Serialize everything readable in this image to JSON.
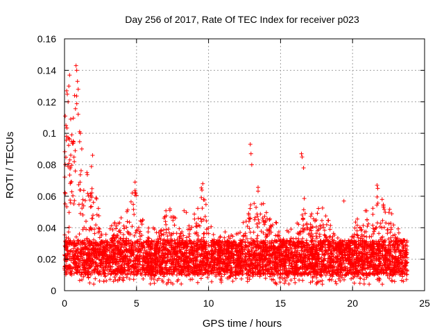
{
  "chart_data": {
    "type": "scatter",
    "title": "Day 256 of 2017, Rate Of TEC Index for receiver p023",
    "xlabel": "GPS time / hours",
    "ylabel": "ROTI / TECUs",
    "xlim": [
      0,
      25
    ],
    "ylim": [
      0,
      0.16
    ],
    "x_ticks": [
      0,
      5,
      10,
      15,
      20,
      25
    ],
    "x_tick_labels": [
      "0",
      "5",
      "10",
      "15",
      "20",
      "25"
    ],
    "y_ticks": [
      0,
      0.02,
      0.04,
      0.06,
      0.08,
      0.1,
      0.12,
      0.14,
      0.16
    ],
    "y_tick_labels": [
      "0",
      "0.02",
      "0.04",
      "0.06",
      "0.08",
      "0.1",
      "0.12",
      "0.14",
      "0.16"
    ],
    "grid": true,
    "marker": "plus",
    "color": "#ff0000",
    "envelope": [
      [
        0.0,
        0.09
      ],
      [
        0.2,
        0.13
      ],
      [
        0.5,
        0.12
      ],
      [
        0.8,
        0.14
      ],
      [
        1.0,
        0.11
      ],
      [
        1.3,
        0.08
      ],
      [
        1.6,
        0.075
      ],
      [
        2.0,
        0.085
      ],
      [
        2.5,
        0.04
      ],
      [
        3.0,
        0.037
      ],
      [
        3.5,
        0.045
      ],
      [
        4.0,
        0.048
      ],
      [
        4.5,
        0.055
      ],
      [
        4.9,
        0.07
      ],
      [
        5.3,
        0.046
      ],
      [
        6.0,
        0.042
      ],
      [
        6.5,
        0.045
      ],
      [
        7.2,
        0.054
      ],
      [
        7.8,
        0.046
      ],
      [
        8.4,
        0.052
      ],
      [
        9.0,
        0.05
      ],
      [
        9.6,
        0.069
      ],
      [
        10.1,
        0.042
      ],
      [
        10.6,
        0.036
      ],
      [
        11.2,
        0.038
      ],
      [
        11.8,
        0.036
      ],
      [
        12.3,
        0.04
      ],
      [
        12.7,
        0.055
      ],
      [
        13.0,
        0.065
      ],
      [
        13.5,
        0.066
      ],
      [
        14.0,
        0.053
      ],
      [
        14.6,
        0.045
      ],
      [
        15.2,
        0.038
      ],
      [
        15.8,
        0.04
      ],
      [
        16.2,
        0.047
      ],
      [
        16.6,
        0.064
      ],
      [
        17.0,
        0.045
      ],
      [
        17.6,
        0.064
      ],
      [
        18.2,
        0.048
      ],
      [
        18.7,
        0.037
      ],
      [
        19.2,
        0.035
      ],
      [
        19.6,
        0.034
      ],
      [
        20.2,
        0.046
      ],
      [
        20.7,
        0.05
      ],
      [
        21.1,
        0.052
      ],
      [
        21.5,
        0.053
      ],
      [
        21.8,
        0.063
      ],
      [
        22.2,
        0.057
      ],
      [
        22.7,
        0.05
      ],
      [
        23.2,
        0.04
      ],
      [
        23.8,
        0.034
      ]
    ],
    "outliers": [
      [
        0.05,
        0.111
      ],
      [
        0.1,
        0.105
      ],
      [
        0.15,
        0.127
      ],
      [
        0.25,
        0.12
      ],
      [
        0.3,
        0.13
      ],
      [
        0.35,
        0.137
      ],
      [
        0.5,
        0.099
      ],
      [
        0.6,
        0.095
      ],
      [
        0.8,
        0.143
      ],
      [
        0.85,
        0.14
      ],
      [
        0.9,
        0.133
      ],
      [
        0.95,
        0.128
      ],
      [
        1.05,
        0.101
      ],
      [
        1.1,
        0.1
      ],
      [
        0.7,
        0.124
      ],
      [
        1.2,
        0.09
      ],
      [
        1.95,
        0.086
      ],
      [
        4.9,
        0.069
      ],
      [
        4.7,
        0.062
      ],
      [
        9.6,
        0.068
      ],
      [
        12.9,
        0.093
      ],
      [
        12.95,
        0.087
      ],
      [
        13.0,
        0.08
      ],
      [
        16.45,
        0.087
      ],
      [
        16.5,
        0.085
      ],
      [
        16.6,
        0.078
      ],
      [
        19.4,
        0.057
      ],
      [
        21.7,
        0.067
      ],
      [
        21.75,
        0.065
      ],
      [
        22.05,
        0.058
      ]
    ],
    "x_range": [
      0.0,
      23.8
    ],
    "floor": 0.004
  },
  "colors": {
    "points": "#ff0000",
    "grid": "#a0a0a0",
    "axes": "#000000"
  }
}
